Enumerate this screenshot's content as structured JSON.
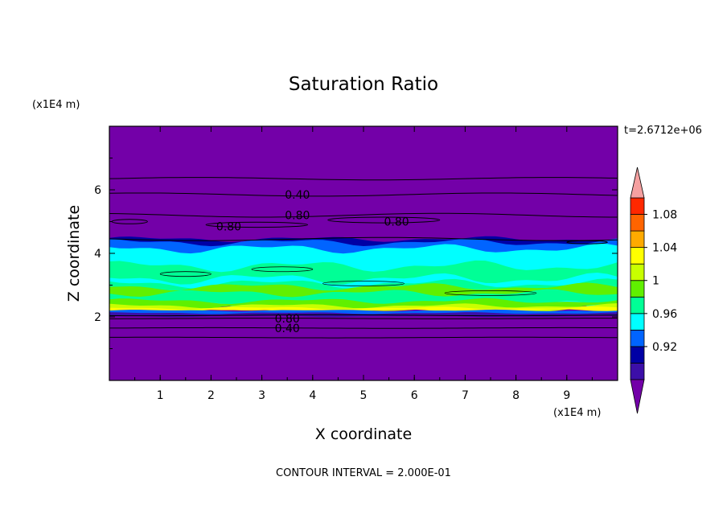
{
  "chart_data": {
    "type": "heatmap",
    "title": "Saturation Ratio",
    "xlabel": "X coordinate",
    "ylabel": "Z coordinate",
    "x_unit": "(x1E4 m)",
    "y_unit": "(x1E4 m)",
    "time_label": "t=2.6712e+06",
    "footer": "CONTOUR INTERVAL = 2.000E-01",
    "xlim": [
      0,
      10
    ],
    "ylim": [
      0,
      8
    ],
    "x_ticks": [
      "1",
      "2",
      "3",
      "4",
      "5",
      "6",
      "7",
      "8",
      "9"
    ],
    "y_ticks": [
      "2",
      "4",
      "6"
    ],
    "legend": {
      "placement": "right",
      "labels": [
        "0.92",
        "0.96",
        "1",
        "1.04",
        "1.08"
      ],
      "colors": [
        "#7300a8",
        "#3c0fa8",
        "#0000a5",
        "#0064ff",
        "#00ffff",
        "#00ff96",
        "#60f000",
        "#c8ff00",
        "#ffff00",
        "#ffaa00",
        "#ff6400",
        "#ff2800",
        "#f5a0a0"
      ]
    },
    "contour_labels": [
      {
        "text": "0.40",
        "x": 3.7,
        "z": 5.85
      },
      {
        "text": "0.80",
        "x": 3.7,
        "z": 5.2
      },
      {
        "text": "0.80",
        "x": 2.35,
        "z": 4.85
      },
      {
        "text": "0.80",
        "x": 5.65,
        "z": 5.0
      },
      {
        "text": "0.80",
        "x": 3.5,
        "z": 1.95
      },
      {
        "text": "0.40",
        "x": 3.5,
        "z": 1.65
      }
    ]
  }
}
